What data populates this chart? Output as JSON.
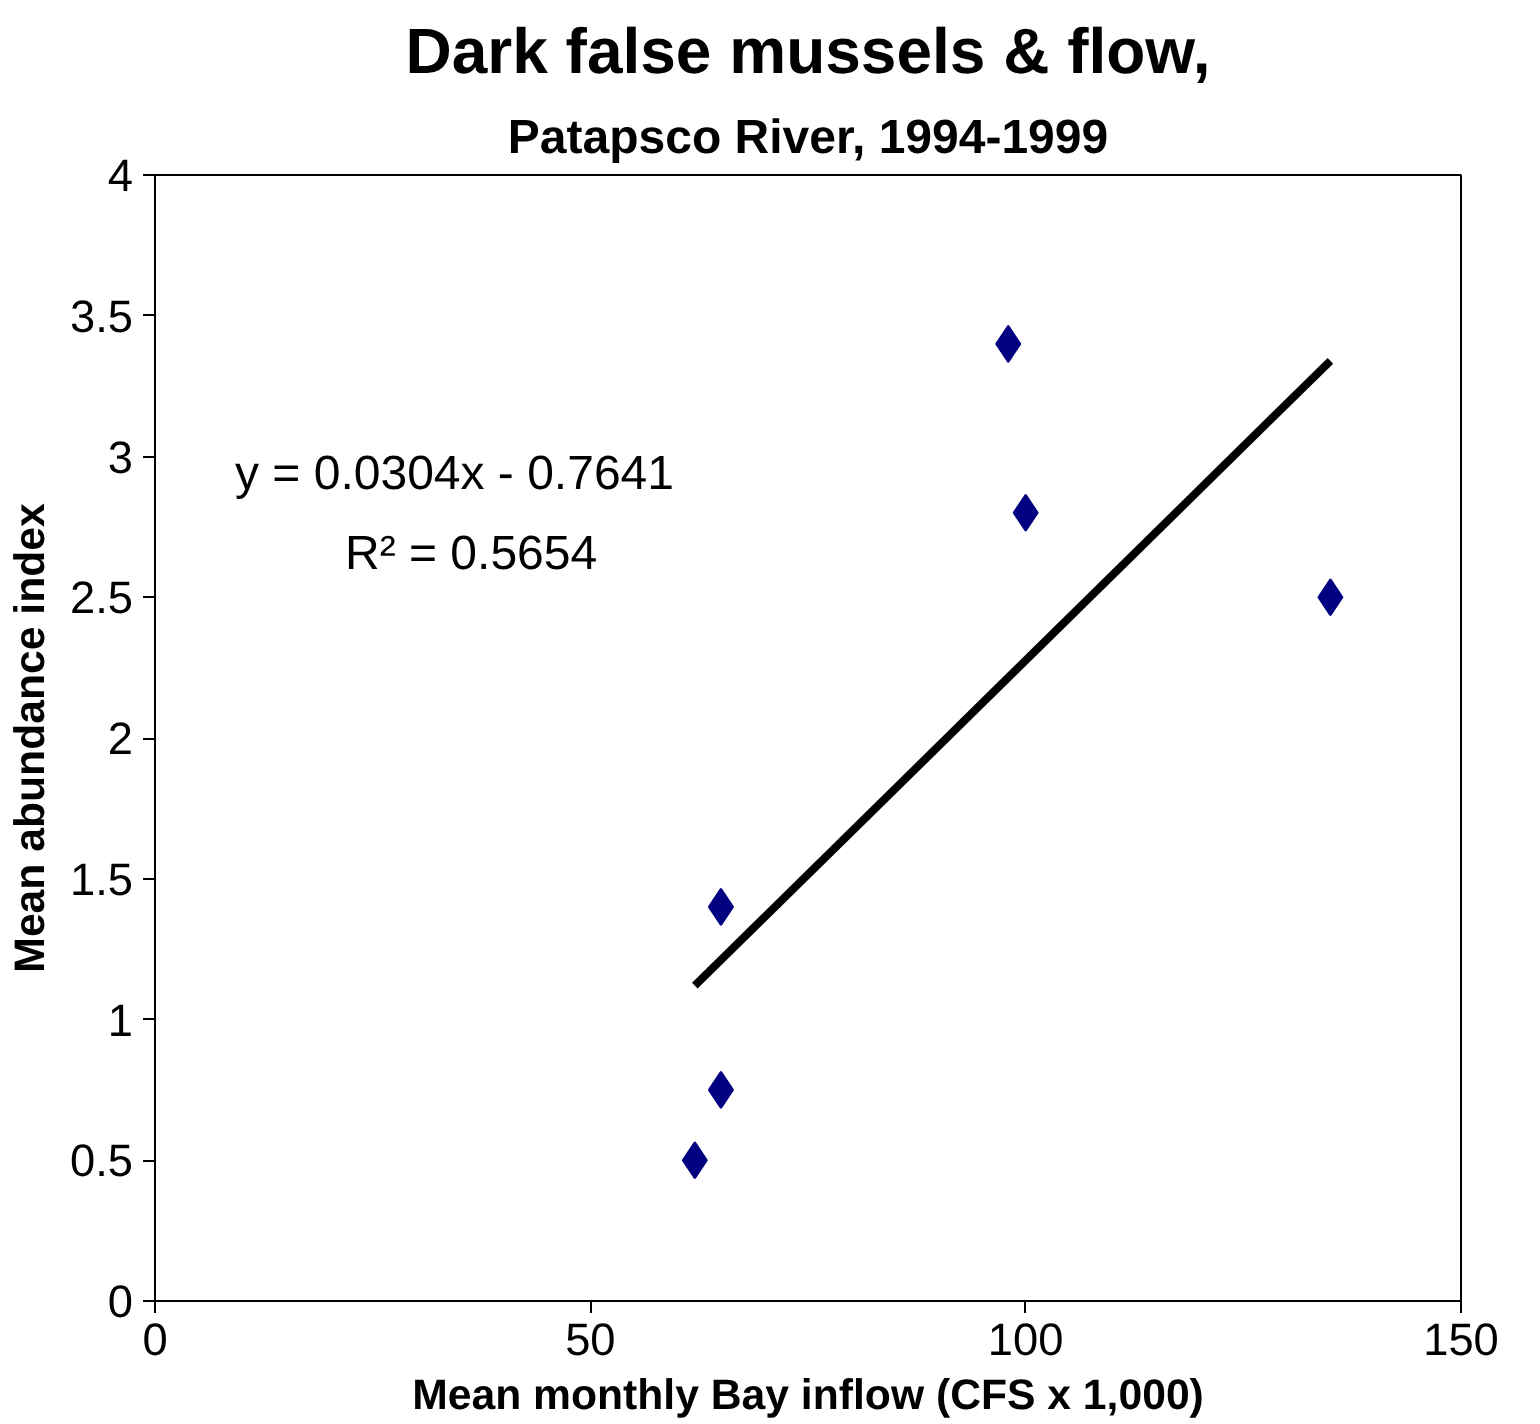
{
  "chart_data": {
    "type": "scatter",
    "title": "Dark false mussels & flow,",
    "subtitle": "Patapsco River, 1994-1999",
    "xlabel": "Mean monthly Bay inflow (CFS x 1,000)",
    "ylabel": "Mean abundance index",
    "series": [
      {
        "color": "#000080",
        "x": [
          62,
          65,
          65,
          98,
          100,
          135
        ],
        "values": [
          0.5,
          0.75,
          1.4,
          3.4,
          2.8,
          2.5
        ]
      },
      {
        "type": "line",
        "color": "#000000",
        "marker": "none",
        "x": [
          62,
          135
        ],
        "values": [
          1.12,
          3.34
        ]
      }
    ],
    "annotations": [
      "y = 0.0304x - 0.7641",
      "R² = 0.5654"
    ],
    "xlim": [
      0,
      150
    ],
    "xticks": [
      0,
      50,
      100,
      150
    ],
    "ylim": [
      0,
      4
    ],
    "yticks": [
      0,
      0.5,
      1,
      1.5,
      2,
      2.5,
      3,
      3.5,
      4
    ],
    "marker": "diamond",
    "grid": false
  }
}
